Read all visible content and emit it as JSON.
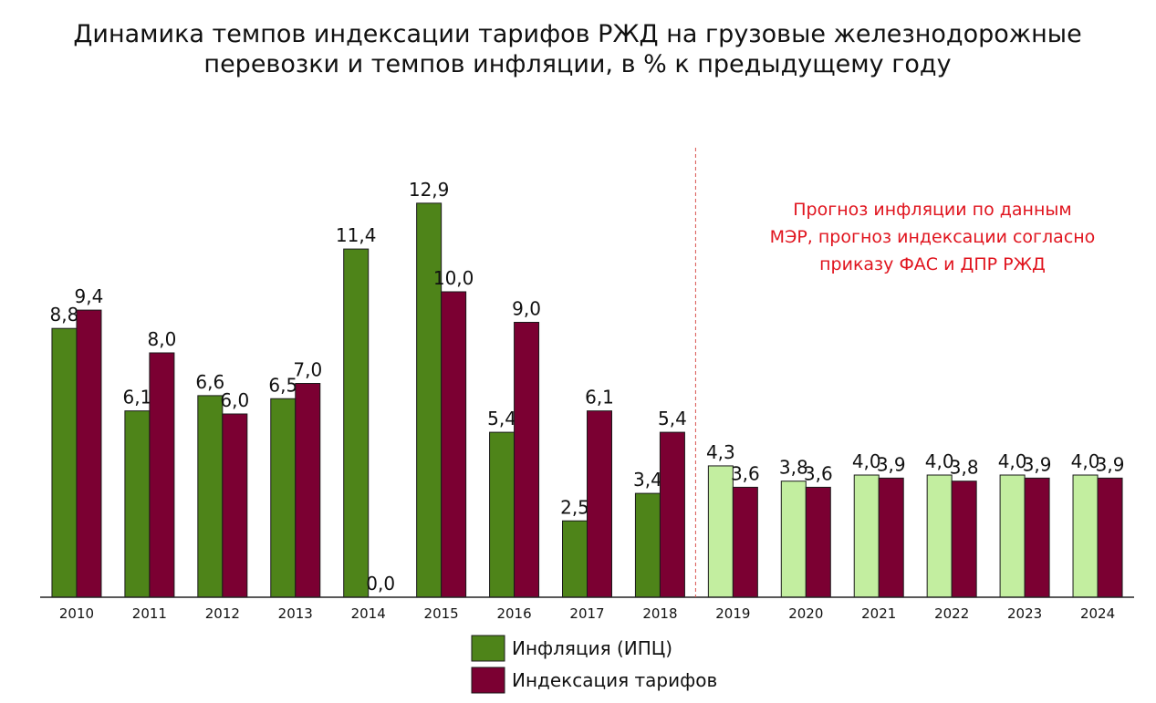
{
  "chart_data": {
    "type": "bar",
    "title_lines": [
      "Динамика темпов индексации тарифов РЖД на грузовые железнодорожные",
      "перевозки и темпов инфляции, в % к предыдущему году"
    ],
    "categories": [
      "2010",
      "2011",
      "2012",
      "2013",
      "2014",
      "2015",
      "2016",
      "2017",
      "2018",
      "2019",
      "2020",
      "2021",
      "2022",
      "2023",
      "2024"
    ],
    "series": [
      {
        "name": "Инфляция (ИПЦ)",
        "color": "#4e8419",
        "forecast_color": "#c3eea0",
        "values": [
          8.8,
          6.1,
          6.6,
          6.5,
          11.4,
          12.9,
          5.4,
          2.5,
          3.4,
          4.3,
          3.8,
          4.0,
          4.0,
          4.0,
          4.0
        ],
        "labels": [
          "8,8",
          "6,1",
          "6,6",
          "6,5",
          "11,4",
          "12,9",
          "5,4",
          "2,5",
          "3,4",
          "4,3",
          "3,8",
          "4,0",
          "4,0",
          "4,0",
          "4,0"
        ]
      },
      {
        "name": "Индексация тарифов",
        "color": "#7b0032",
        "forecast_color": "#7b0032",
        "values": [
          9.4,
          8.0,
          6.0,
          7.0,
          0.0,
          10.0,
          9.0,
          6.1,
          5.4,
          3.6,
          3.6,
          3.9,
          3.8,
          3.9,
          3.9
        ],
        "labels": [
          "9,4",
          "8,0",
          "6,0",
          "7,0",
          "0,0",
          "10,0",
          "9,0",
          "6,1",
          "5,4",
          "3,6",
          "3,6",
          "3,9",
          "3,8",
          "3,9",
          "3,9"
        ]
      }
    ],
    "ylim": [
      0,
      14
    ],
    "grid": false,
    "forecast_start_category": "2019",
    "annotation_lines": [
      "Прогноз инфляции по данным",
      "МЭР, прогноз индексации согласно",
      "приказу ФАС и ДПР РЖД"
    ],
    "annotation_color": "#e0141e",
    "legend_placement": "bottom-center"
  }
}
